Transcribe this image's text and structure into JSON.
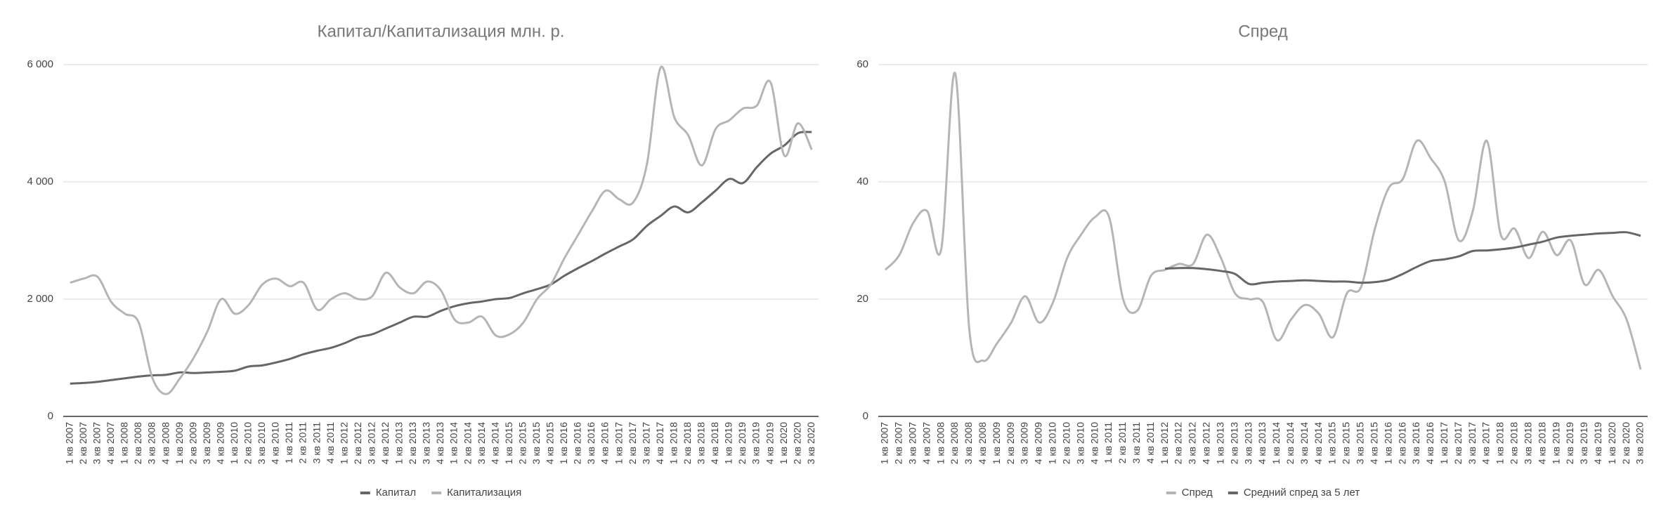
{
  "chart_data": [
    {
      "type": "line",
      "title": "Капитал/Капитализация млн. р.",
      "categories": [
        "1 кв 2007",
        "2 кв 2007",
        "3 кв 2007",
        "4 кв 2007",
        "1 кв 2008",
        "2 кв 2008",
        "3 кв 2008",
        "4 кв 2008",
        "1 кв 2009",
        "2 кв 2009",
        "3 кв 2009",
        "4 кв 2009",
        "1 кв 2010",
        "2 кв 2010",
        "3 кв 2010",
        "4 кв 2010",
        "1 кв 2011",
        "2 кв 2011",
        "3 кв 2011",
        "4 кв 2011",
        "1 кв 2012",
        "2 кв 2012",
        "3 кв 2012",
        "4 кв 2012",
        "1 кв 2013",
        "2 кв 2013",
        "3 кв 2013",
        "4 кв 2013",
        "1 кв 2014",
        "2 кв 2014",
        "3 кв 2014",
        "4 кв 2014",
        "1 кв 2015",
        "2 кв 2015",
        "3 кв 2015",
        "4 кв 2015",
        "1 кв 2016",
        "2 кв 2016",
        "3 кв 2016",
        "4 кв 2016",
        "1 кв 2017",
        "2 кв 2017",
        "3 кв 2017",
        "4 кв 2017",
        "1 кв 2018",
        "2 кв 2018",
        "3 кв 2018",
        "4 кв 2018",
        "1 кв 2019",
        "2 кв 2019",
        "3 кв 2019",
        "4 кв 2019",
        "1 кв 2020",
        "2 кв 2020",
        "3 кв 2020"
      ],
      "series": [
        {
          "name": "Капитал",
          "color": "#666666",
          "values": [
            560,
            570,
            590,
            620,
            650,
            680,
            700,
            710,
            750,
            740,
            750,
            760,
            780,
            850,
            870,
            920,
            980,
            1060,
            1120,
            1170,
            1250,
            1350,
            1400,
            1500,
            1600,
            1700,
            1700,
            1800,
            1880,
            1930,
            1960,
            2000,
            2020,
            2100,
            2170,
            2250,
            2400,
            2530,
            2650,
            2780,
            2900,
            3020,
            3250,
            3420,
            3580,
            3480,
            3650,
            3850,
            4050,
            3980,
            4250,
            4480,
            4620,
            4830,
            4850
          ]
        },
        {
          "name": "Капитализация",
          "color": "#b5b5b5",
          "values": [
            2280,
            2350,
            2380,
            1950,
            1750,
            1600,
            650,
            380,
            650,
            1000,
            1450,
            2000,
            1750,
            1900,
            2250,
            2350,
            2220,
            2280,
            1820,
            2000,
            2100,
            2000,
            2050,
            2450,
            2200,
            2100,
            2300,
            2150,
            1650,
            1600,
            1700,
            1380,
            1400,
            1600,
            2000,
            2250,
            2700,
            3100,
            3500,
            3850,
            3700,
            3650,
            4300,
            5950,
            5100,
            4800,
            4280,
            4900,
            5050,
            5250,
            5300,
            5700,
            4450,
            5000,
            4550
          ]
        }
      ],
      "ylim": [
        0,
        6000
      ],
      "yticks": [
        0,
        {
          "value": 2000,
          "label": "2 000"
        },
        {
          "value": 4000,
          "label": "4 000"
        },
        {
          "value": 6000,
          "label": "6 000"
        }
      ],
      "grid": true,
      "legend": "bottom"
    },
    {
      "type": "line",
      "title": "Спред",
      "categories": [
        "1 кв 2007",
        "2 кв 2007",
        "3 кв 2007",
        "4 кв 2007",
        "1 кв 2008",
        "2 кв 2008",
        "3 кв 2008",
        "4 кв 2008",
        "1 кв 2009",
        "2 кв 2009",
        "3 кв 2009",
        "4 кв 2009",
        "1 кв 2010",
        "2 кв 2010",
        "3 кв 2010",
        "4 кв 2010",
        "1 кв 2011",
        "2 кв 2011",
        "3 кв 2011",
        "4 кв 2011",
        "1 кв 2012",
        "2 кв 2012",
        "3 кв 2012",
        "4 кв 2012",
        "1 кв 2013",
        "2 кв 2013",
        "3 кв 2013",
        "4 кв 2013",
        "1 кв 2014",
        "2 кв 2014",
        "3 кв 2014",
        "4 кв 2014",
        "1 кв 2015",
        "2 кв 2015",
        "3 кв 2015",
        "4 кв 2015",
        "1 кв 2016",
        "2 кв 2016",
        "3 кв 2016",
        "4 кв 2016",
        "1 кв 2017",
        "2 кв 2017",
        "3 кв 2017",
        "4 кв 2017",
        "1 кв 2018",
        "2 кв 2018",
        "3 кв 2018",
        "4 кв 2018",
        "1 кв 2019",
        "2 кв 2019",
        "3 кв 2019",
        "4 кв 2019",
        "1 кв 2020",
        "2 кв 2020",
        "3 кв 2020"
      ],
      "series": [
        {
          "name": "Спред",
          "color": "#b5b5b5",
          "values": [
            25,
            27.5,
            33,
            35,
            28.5,
            58.5,
            15,
            9.5,
            12.5,
            16,
            20.5,
            16,
            19.5,
            27,
            31,
            34,
            34,
            20,
            18,
            24,
            25,
            26,
            26,
            31,
            27,
            21,
            20,
            19.5,
            13,
            16.5,
            19,
            17.5,
            13.5,
            21,
            22,
            32,
            39,
            40.5,
            47,
            44,
            40,
            30,
            35,
            47,
            31,
            32,
            27,
            31.5,
            27.5,
            30,
            22.5,
            25,
            20.5,
            16.5,
            8
          ]
        },
        {
          "name": "Средний спред за 5 лет",
          "color": "#666666",
          "values": [
            null,
            null,
            null,
            null,
            null,
            null,
            null,
            null,
            null,
            null,
            null,
            null,
            null,
            null,
            null,
            null,
            null,
            null,
            null,
            null,
            25.2,
            25.3,
            25.3,
            25.1,
            24.8,
            24.3,
            22.6,
            22.8,
            23,
            23.1,
            23.2,
            23.1,
            23,
            23,
            22.8,
            22.9,
            23.3,
            24.3,
            25.5,
            26.5,
            26.8,
            27.3,
            28.2,
            28.3,
            28.5,
            28.8,
            29.3,
            29.8,
            30.5,
            30.8,
            31,
            31.2,
            31.3,
            31.4,
            30.8
          ]
        }
      ],
      "ylim": [
        0,
        60
      ],
      "yticks": [
        0,
        20,
        40,
        60
      ],
      "grid": true,
      "legend": "bottom"
    }
  ]
}
